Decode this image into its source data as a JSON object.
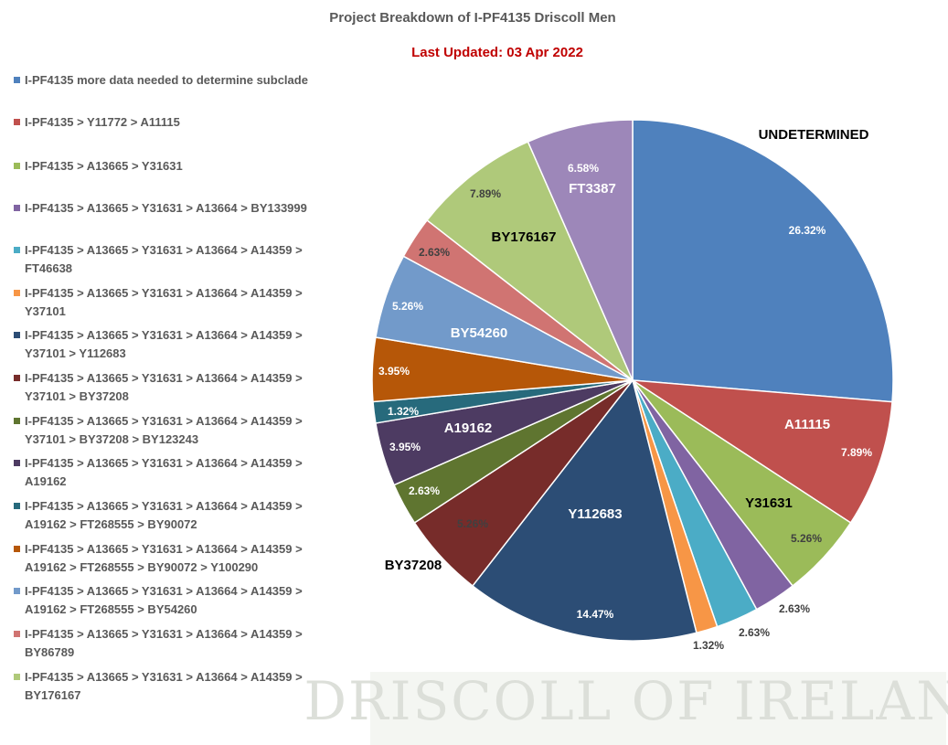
{
  "chart_data": {
    "type": "pie",
    "title": "Project Breakdown of I-PF4135 Driscoll Men",
    "subtitle": "Last Updated:  03 Apr 2022",
    "watermark": "DRISCOLL OF IRELAND",
    "categories": [
      "I-PF4135 more data needed to determine subclade",
      "I-PF4135 > Y11772 > A11115",
      "I-PF4135 > A13665 > Y31631",
      "I-PF4135 > A13665 > Y31631 > A13664 > BY133999",
      "I-PF4135 > A13665 > Y31631 > A13664 > A14359 > FT46638",
      "I-PF4135 > A13665 > Y31631 > A13664 > A14359 > Y37101",
      "I-PF4135 > A13665 > Y31631 > A13664 > A14359 > Y37101 > Y112683",
      "I-PF4135 > A13665 > Y31631 > A13664 > A14359 > Y37101 > BY37208",
      "I-PF4135 > A13665 > Y31631 > A13664 > A14359 > Y37101 > BY37208 > BY123243",
      "I-PF4135 > A13665 > Y31631 > A13664 > A14359 > A19162",
      "I-PF4135 > A13665 > Y31631 > A13664 > A14359 > A19162 > FT268555 > BY90072",
      "I-PF4135 > A13665 > Y31631 > A13664 > A14359 > A19162 > FT268555 > BY90072 > Y100290",
      "I-PF4135 > A13665 > Y31631 > A13664 > A14359 > A19162 > FT268555 > BY54260",
      "I-PF4135 > A13665 > Y31631 > A13664 > A14359 > BY86789",
      "I-PF4135 > A13665 > Y31631 > A13664 > A14359 > BY176167",
      null
    ],
    "slice_names": [
      "UNDETERMINED",
      "A11115",
      "Y31631",
      null,
      null,
      null,
      "Y112683",
      "BY37208",
      null,
      "A19162",
      null,
      null,
      "BY54260",
      null,
      "BY176167",
      "FT3387"
    ],
    "values": [
      26.32,
      7.89,
      5.26,
      2.63,
      2.63,
      1.32,
      14.47,
      5.26,
      2.63,
      3.95,
      1.32,
      3.95,
      5.26,
      2.63,
      7.89,
      6.58
    ],
    "value_labels": [
      "26.32%",
      "7.89%",
      "5.26%",
      "2.63%",
      "2.63%",
      "1.32%",
      "14.47%",
      "5.26%",
      "2.63%",
      "3.95%",
      "1.32%",
      "3.95%",
      "5.26%",
      "2.63%",
      "7.89%",
      "6.58%"
    ],
    "colors": [
      "#4f81bd",
      "#c0504d",
      "#9bbb59",
      "#8064a2",
      "#4bacc6",
      "#f79646",
      "#2c4d75",
      "#772c2a",
      "#5f7530",
      "#4d3b62",
      "#276a7c",
      "#b65708",
      "#729aca",
      "#d07472",
      "#afc97a",
      "#9d87b9"
    ]
  }
}
